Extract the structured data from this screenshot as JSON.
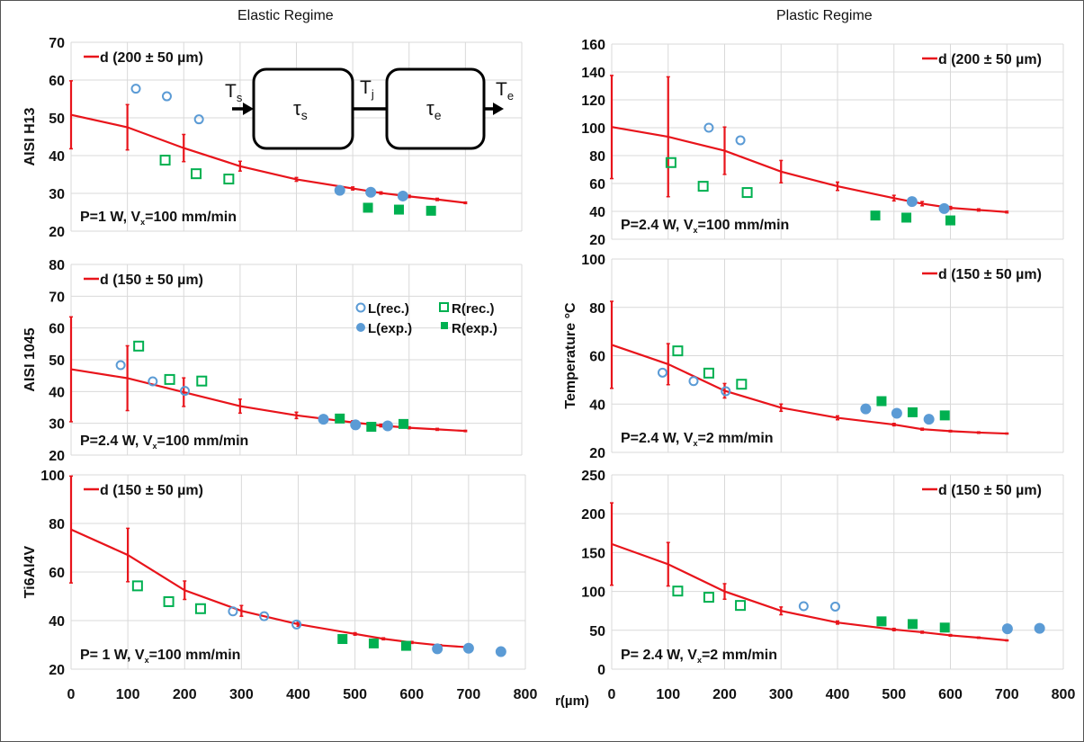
{
  "titles": {
    "left": "Elastic Regime",
    "right": "Plastic Regime"
  },
  "x_axis_label": "r(µm)",
  "colors": {
    "model_line": "#e8141b",
    "L_marker": "#5b9bd5",
    "R_marker": "#00b050",
    "grid": "#d9d9d9"
  },
  "legend_markers": {
    "L_rec": "L(rec.)",
    "R_rec": "R(rec.)",
    "L_exp": "L(exp.)",
    "R_exp": "R(exp.)"
  },
  "diagram": {
    "input": "T",
    "input_sub": "s",
    "box1": "τ",
    "box1_sub": "s",
    "junction": "T",
    "junction_sub": "j",
    "box2": "τ",
    "box2_sub": "e",
    "output": "T",
    "output_sub": "e"
  },
  "chart_data": [
    {
      "type": "line",
      "id": "h13",
      "regime": "Elastic Regime",
      "ylabel": "AISI H13",
      "xlabel": "",
      "xlim": [
        0,
        800
      ],
      "ylim": [
        20,
        70
      ],
      "yticks": [
        20,
        30,
        40,
        50,
        60,
        70
      ],
      "xticks": [
        0,
        100,
        200,
        300,
        400,
        500,
        600,
        700,
        800
      ],
      "show_xtick_labels": false,
      "grid": true,
      "legend": "d (200 ± 50 µm)",
      "legend_position": "top-left",
      "annotation": {
        "pre": "P=1 W, V",
        "sub": "x",
        "post": "=100 mm/min"
      },
      "model": {
        "name": "d (200 ± 50 µm)",
        "x": [
          0,
          100,
          200,
          300,
          400,
          500,
          550,
          600,
          650,
          700
        ],
        "y": [
          50.8,
          47.5,
          42,
          37.2,
          33.7,
          31.3,
          30.1,
          29.2,
          28.4,
          27.5
        ],
        "err": [
          9,
          6,
          3.6,
          1.3,
          0.5,
          0.4,
          0.3,
          0.3,
          0.3,
          0.2
        ]
      },
      "L_rec": {
        "x": [
          115,
          170,
          227
        ],
        "y": [
          57.7,
          55.7,
          49.6
        ]
      },
      "R_rec": {
        "x": [
          167,
          222,
          280
        ],
        "y": [
          38.8,
          35.2,
          33.8
        ]
      },
      "L_exp": {
        "x": [
          477,
          532,
          589
        ],
        "y": [
          30.8,
          30.3,
          29.3
        ]
      },
      "R_exp": {
        "x": [
          527,
          582,
          639
        ],
        "y": [
          26.2,
          25.7,
          25.4
        ]
      },
      "show_diagram": true
    },
    {
      "type": "line",
      "id": "h13-plastic",
      "regime": "Plastic Regime",
      "ylabel": "",
      "xlabel": "",
      "xlim": [
        0,
        800
      ],
      "ylim": [
        20,
        160
      ],
      "yticks": [
        20,
        40,
        60,
        80,
        100,
        120,
        140,
        160
      ],
      "xticks": [
        0,
        100,
        200,
        300,
        400,
        500,
        600,
        700,
        800
      ],
      "show_xtick_labels": false,
      "grid": true,
      "legend": "d (200 ± 50 µm)",
      "legend_position": "top-right",
      "annotation": {
        "pre": "P=2.4 W, V",
        "sub": "x",
        "post": "=100 mm/min"
      },
      "model": {
        "name": "d (200 ± 50 µm)",
        "x": [
          0,
          100,
          200,
          300,
          400,
          500,
          550,
          600,
          650,
          700
        ],
        "y": [
          100.5,
          93.5,
          83.5,
          68.5,
          58,
          49.5,
          45.5,
          42.5,
          41,
          39.5
        ],
        "err": [
          37,
          43,
          17,
          8,
          3,
          2,
          1.5,
          1,
          0.8,
          0.6
        ]
      },
      "L_rec": {
        "x": [
          172,
          228
        ],
        "y": [
          100,
          91
        ]
      },
      "R_rec": {
        "x": [
          105,
          162,
          240
        ],
        "y": [
          75,
          58,
          53.5
        ]
      },
      "L_exp": {
        "x": [
          532,
          589
        ],
        "y": [
          47,
          42
        ]
      },
      "R_exp": {
        "x": [
          467,
          522,
          600
        ],
        "y": [
          37,
          35.5,
          33.5
        ]
      },
      "show_diagram": false
    },
    {
      "type": "line",
      "id": "1045",
      "regime": "Elastic Regime",
      "ylabel": "AISI 1045",
      "xlabel": "",
      "xlim": [
        0,
        800
      ],
      "ylim": [
        20,
        80
      ],
      "yticks": [
        20,
        30,
        40,
        50,
        60,
        70,
        80
      ],
      "xticks": [
        0,
        100,
        200,
        300,
        400,
        500,
        600,
        700,
        800
      ],
      "show_xtick_labels": false,
      "grid": true,
      "legend": "d (150 ± 50 µm)",
      "legend_position": "top-left",
      "show_marker_legend": true,
      "annotation": {
        "pre": "P=2.4 W, V",
        "sub": "x",
        "post": "=100 mm/min"
      },
      "model": {
        "name": "d (150 ± 50 µm)",
        "x": [
          0,
          100,
          200,
          300,
          400,
          500,
          550,
          600,
          650,
          700
        ],
        "y": [
          47,
          44.2,
          39.8,
          35.4,
          32.5,
          30.3,
          29.3,
          28.6,
          28.1,
          27.6
        ],
        "err": [
          16.5,
          10.2,
          4.5,
          2.2,
          1,
          0.5,
          0.4,
          0.3,
          0.3,
          0.2
        ]
      },
      "L_rec": {
        "x": [
          88,
          145,
          202
        ],
        "y": [
          48.3,
          43.2,
          40.2
        ]
      },
      "R_rec": {
        "x": [
          120,
          175,
          232
        ],
        "y": [
          54.3,
          43.8,
          43.3
        ]
      },
      "L_exp": {
        "x": [
          448,
          505,
          562
        ],
        "y": [
          31.3,
          29.5,
          29.2
        ]
      },
      "R_exp": {
        "x": [
          477,
          533,
          590
        ],
        "y": [
          31.5,
          28.9,
          29.8
        ]
      },
      "show_diagram": false
    },
    {
      "type": "line",
      "id": "1045-plastic",
      "regime": "Plastic Regime",
      "ylabel": "Temperature °C",
      "xlabel": "",
      "xlim": [
        0,
        800
      ],
      "ylim": [
        20,
        100
      ],
      "yticks": [
        20,
        40,
        60,
        80,
        100
      ],
      "xticks": [
        0,
        100,
        200,
        300,
        400,
        500,
        600,
        700,
        800
      ],
      "show_xtick_labels": false,
      "grid": true,
      "legend": "d (150 ± 50 µm)",
      "legend_position": "top-right",
      "annotation": {
        "pre": "P=2.4 W, V",
        "sub": "x",
        "post": "=2 mm/min"
      },
      "model": {
        "name": "d (150 ± 50 µm)",
        "x": [
          0,
          100,
          200,
          300,
          400,
          500,
          550,
          600,
          650,
          700
        ],
        "y": [
          64.5,
          56.5,
          45.5,
          38.5,
          34.3,
          31.5,
          29.6,
          28.8,
          28.2,
          27.8
        ],
        "err": [
          18,
          8.5,
          3,
          1.5,
          0.8,
          0.5,
          0.4,
          0.3,
          0.3,
          0.2
        ]
      },
      "L_rec": {
        "x": [
          90,
          145,
          202
        ],
        "y": [
          53,
          49.5,
          45.3
        ]
      },
      "R_rec": {
        "x": [
          117,
          172,
          230
        ],
        "y": [
          62,
          52.8,
          48.2
        ]
      },
      "L_exp": {
        "x": [
          450,
          505,
          562
        ],
        "y": [
          38,
          36.2,
          33.7
        ]
      },
      "R_exp": {
        "x": [
          478,
          533,
          590
        ],
        "y": [
          41.2,
          36.6,
          35.3
        ]
      },
      "show_diagram": false
    },
    {
      "type": "line",
      "id": "ti6al4v",
      "regime": "Elastic Regime",
      "ylabel": "Ti6Al4V",
      "xlabel": "",
      "xlim": [
        0,
        800
      ],
      "ylim": [
        20,
        100
      ],
      "yticks": [
        20,
        40,
        60,
        80,
        100
      ],
      "xticks": [
        0,
        100,
        200,
        300,
        400,
        500,
        600,
        700,
        800
      ],
      "show_xtick_labels": true,
      "grid": true,
      "legend": "d (150 ± 50 µm)",
      "legend_position": "top-left",
      "annotation": {
        "pre": "P= 1 W, V",
        "sub": "x",
        "post": "=100 mm/min"
      },
      "model": {
        "name": "d (150 ± 50 µm)",
        "x": [
          0,
          100,
          200,
          300,
          400,
          500,
          550,
          600,
          650,
          700
        ],
        "y": [
          77.5,
          67,
          52.5,
          44,
          38.5,
          34.5,
          32.5,
          31,
          29.8,
          29
        ],
        "err": [
          22,
          11,
          3.8,
          2.2,
          0.8,
          0.5,
          0.4,
          0.4,
          0.3,
          0.2
        ]
      },
      "L_rec": {
        "x": [
          285,
          340,
          397
        ],
        "y": [
          43.8,
          41.8,
          38.4
        ]
      },
      "R_rec": {
        "x": [
          117,
          172,
          228
        ],
        "y": [
          54.3,
          47.8,
          44.9
        ]
      },
      "L_exp": {
        "x": [
          645,
          700,
          757
        ],
        "y": [
          28.4,
          28.6,
          27.2
        ]
      },
      "R_exp": {
        "x": [
          478,
          533,
          590
        ],
        "y": [
          32.4,
          30.6,
          29.6
        ]
      },
      "show_diagram": false
    },
    {
      "type": "line",
      "id": "ti6al4v-plastic",
      "regime": "Plastic Regime",
      "ylabel": "",
      "xlabel": "r(µm)",
      "xlim": [
        0,
        800
      ],
      "ylim": [
        0,
        250
      ],
      "yticks": [
        0,
        50,
        100,
        150,
        200,
        250
      ],
      "xticks": [
        0,
        100,
        200,
        300,
        400,
        500,
        600,
        700,
        800
      ],
      "show_xtick_labels": true,
      "grid": true,
      "legend": "d (150 ± 50 µm)",
      "legend_position": "top-right",
      "annotation": {
        "pre": "P= 2.4 W, V",
        "sub": "x",
        "post": "=2 mm/min"
      },
      "model": {
        "name": "d (150 ± 50 µm)",
        "x": [
          0,
          100,
          200,
          300,
          400,
          500,
          550,
          600,
          650,
          700
        ],
        "y": [
          161,
          135,
          100,
          75,
          60,
          51,
          47.5,
          43.5,
          40.5,
          37
        ],
        "err": [
          53,
          28,
          10,
          5,
          2,
          1.5,
          1.2,
          1,
          0.8,
          0.6
        ]
      },
      "L_rec": {
        "x": [
          340,
          396
        ],
        "y": [
          81,
          80.5
        ]
      },
      "R_rec": {
        "x": [
          117,
          172,
          228
        ],
        "y": [
          100.5,
          92.5,
          82
        ]
      },
      "L_exp": {
        "x": [
          701,
          758
        ],
        "y": [
          52,
          52.5
        ]
      },
      "R_exp": {
        "x": [
          478,
          533,
          590
        ],
        "y": [
          61.5,
          58,
          53.5
        ]
      },
      "show_diagram": false
    }
  ]
}
